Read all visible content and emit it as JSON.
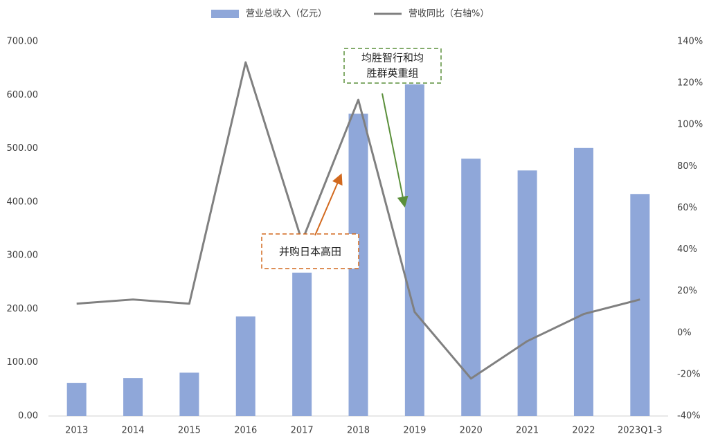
{
  "chart_data": {
    "type": "bar-line",
    "categories": [
      "2013",
      "2014",
      "2015",
      "2016",
      "2017",
      "2018",
      "2019",
      "2020",
      "2021",
      "2022",
      "2023Q1-3"
    ],
    "series": [
      {
        "name": "营业总收入（亿元）",
        "type": "bar",
        "color": "#8fa7d9",
        "values": [
          62,
          71,
          81,
          186,
          268,
          565,
          620,
          481,
          459,
          501,
          415
        ]
      },
      {
        "name": "营收同比（右轴%）",
        "type": "line",
        "axis": "y2",
        "color": "#808080",
        "values": [
          14,
          16,
          14,
          130,
          44,
          112,
          10,
          -22,
          -4,
          9,
          16
        ]
      }
    ],
    "ylim": [
      0,
      700
    ],
    "yticks": [
      {
        "value": 0,
        "label": "0.00"
      },
      {
        "value": 100,
        "label": "100.00"
      },
      {
        "value": 200,
        "label": "200.00"
      },
      {
        "value": 300,
        "label": "300.00"
      },
      {
        "value": 400,
        "label": "400.00"
      },
      {
        "value": 500,
        "label": "500.00"
      },
      {
        "value": 600,
        "label": "600.00"
      },
      {
        "value": 700,
        "label": "700.00"
      }
    ],
    "y2lim": [
      -40,
      140
    ],
    "y2ticks": [
      {
        "value": -40,
        "label": "-40%"
      },
      {
        "value": -20,
        "label": "-20%"
      },
      {
        "value": 0,
        "label": "0%"
      },
      {
        "value": 20,
        "label": "20%"
      },
      {
        "value": 40,
        "label": "40%"
      },
      {
        "value": 60,
        "label": "60%"
      },
      {
        "value": 80,
        "label": "80%"
      },
      {
        "value": 100,
        "label": "100%"
      },
      {
        "value": 120,
        "label": "120%"
      },
      {
        "value": 140,
        "label": "140%"
      }
    ],
    "annotations": [
      {
        "lines": [
          "并购日本高田"
        ]
      },
      {
        "lines": [
          "均胜智行和均",
          "胜群英重组"
        ]
      }
    ]
  }
}
